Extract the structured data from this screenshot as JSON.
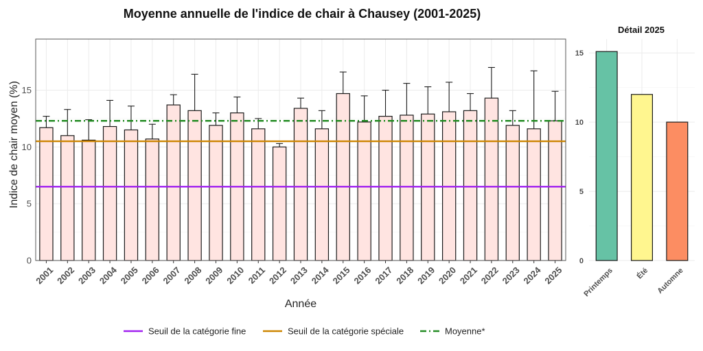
{
  "chart_data": [
    {
      "type": "bar",
      "title": "Moyenne annuelle de l'indice de chair à Chausey (2001-2025)",
      "xlabel": "Année",
      "ylabel": "Indice de chair moyen (%)",
      "ylim": [
        0,
        19.5
      ],
      "yticks": [
        0,
        5,
        10,
        15
      ],
      "grid": true,
      "categories": [
        "2001",
        "2002",
        "2003",
        "2004",
        "2005",
        "2006",
        "2007",
        "2008",
        "2009",
        "2010",
        "2011",
        "2012",
        "2013",
        "2014",
        "2015",
        "2016",
        "2017",
        "2018",
        "2019",
        "2020",
        "2021",
        "2022",
        "2023",
        "2024",
        "2025"
      ],
      "values": [
        11.7,
        11.0,
        10.6,
        11.8,
        11.5,
        10.7,
        13.7,
        13.2,
        11.9,
        13.0,
        11.6,
        10.0,
        13.4,
        11.6,
        14.7,
        12.2,
        12.7,
        12.8,
        12.9,
        13.1,
        13.2,
        14.3,
        11.9,
        11.6,
        12.3
      ],
      "error_upper": [
        12.7,
        13.3,
        12.4,
        14.1,
        13.6,
        12.0,
        14.6,
        16.4,
        13.0,
        14.4,
        12.5,
        10.3,
        14.3,
        13.2,
        16.6,
        14.5,
        15.0,
        15.6,
        15.3,
        15.7,
        14.7,
        17.0,
        13.2,
        16.7,
        14.9
      ],
      "bar_color": "#FFE4E1",
      "reference_lines": [
        {
          "label": "Seuil de la catégorie fine",
          "value": 6.5,
          "color": "#A020F0",
          "style": "solid"
        },
        {
          "label": "Seuil de la catégorie spéciale",
          "value": 10.5,
          "color": "#CD8500",
          "style": "solid"
        },
        {
          "label": "Moyenne*",
          "value": 12.3,
          "color": "#228B22",
          "style": "dashdot"
        }
      ],
      "legend_position": "bottom"
    },
    {
      "type": "bar",
      "title": "Détail 2025",
      "ylim": [
        0,
        16
      ],
      "yticks": [
        0,
        5,
        10,
        15
      ],
      "grid": true,
      "categories": [
        "Printemps",
        "Été",
        "Automne"
      ],
      "values": [
        15.1,
        12.0,
        10.0
      ],
      "colors": [
        "#66C2A5",
        "#FFF68F",
        "#FC8D62"
      ]
    }
  ]
}
